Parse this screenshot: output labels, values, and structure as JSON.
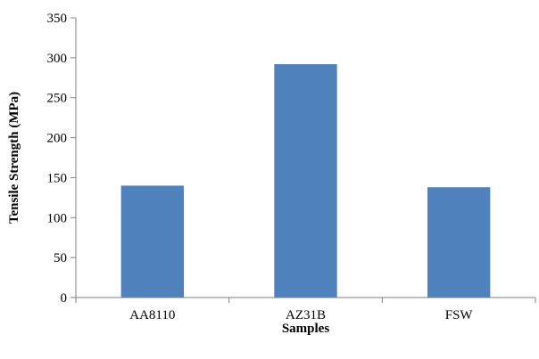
{
  "chart_data": {
    "type": "bar",
    "categories": [
      "AA8110",
      "AZ31B",
      "FSW"
    ],
    "values": [
      140,
      292,
      138
    ],
    "title": "",
    "xlabel": "Samples",
    "ylabel": "Tensile Strength (MPa)",
    "ylim": [
      0,
      350
    ],
    "yticks": [
      "0",
      "50",
      "100",
      "150",
      "200",
      "250",
      "300",
      "350"
    ],
    "grid": false,
    "legend": "none",
    "bar_color": "#4F81BD"
  }
}
